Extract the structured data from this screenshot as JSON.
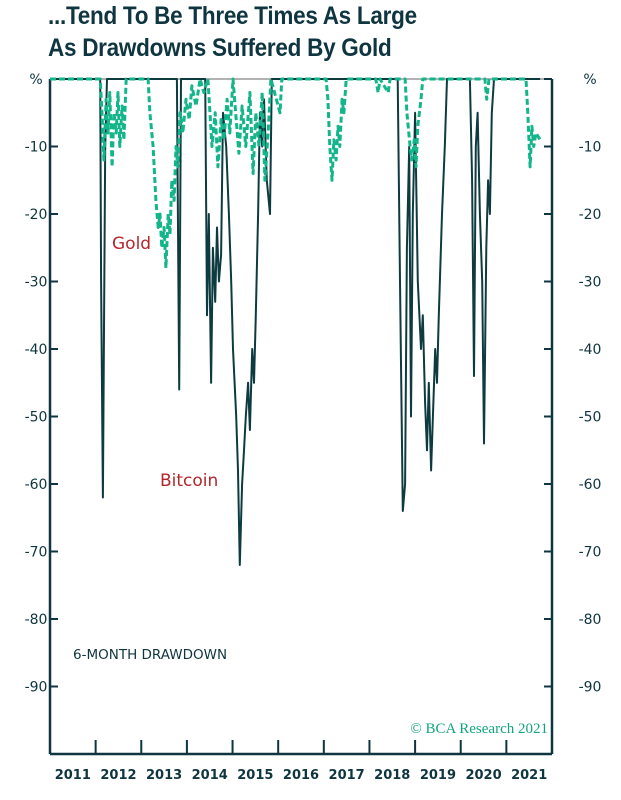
{
  "chart_data": {
    "type": "line",
    "title": "...Tend To Be Three Times As Large",
    "subtitle": "As Drawdowns Suffered By Gold",
    "ylabel": "%",
    "ylim": [
      -100,
      0
    ],
    "yticks": [
      0,
      -10,
      -20,
      -30,
      -40,
      -50,
      -60,
      -70,
      -80,
      -90
    ],
    "ytick_labels": [
      "%",
      "-10",
      "-20",
      "-30",
      "-40",
      "-50",
      "-60",
      "-70",
      "-80",
      "-90"
    ],
    "xlim": [
      2011,
      2022
    ],
    "xtick_labels": [
      "2011",
      "2012",
      "2013",
      "2014",
      "2015",
      "2016",
      "2017",
      "2018",
      "2019",
      "2020",
      "2021"
    ],
    "grid": false,
    "annotations": {
      "panel_label": "6-MONTH DRAWDOWN",
      "source": "© BCA Research 2021"
    },
    "series": [
      {
        "name": "Bitcoin",
        "color": "#0d3b40",
        "style": "solid",
        "x": [
          2011.0,
          2012.1,
          2012.12,
          2012.16,
          2012.21,
          2012.25,
          2013.78,
          2013.83,
          2013.87,
          2014.4,
          2014.44,
          2014.48,
          2014.53,
          2014.57,
          2014.62,
          2014.66,
          2014.7,
          2014.75,
          2014.79,
          2014.86,
          2014.92,
          2014.97,
          2015.01,
          2015.08,
          2015.12,
          2015.16,
          2015.21,
          2015.25,
          2015.29,
          2015.34,
          2015.38,
          2015.43,
          2015.47,
          2015.51,
          2015.56,
          2015.6,
          2015.65,
          2015.69,
          2015.75,
          2015.82,
          2015.86,
          2018.62,
          2018.67,
          2018.73,
          2018.78,
          2018.82,
          2018.87,
          2018.91,
          2018.95,
          2019.0,
          2019.06,
          2019.13,
          2019.17,
          2019.22,
          2019.26,
          2019.3,
          2019.35,
          2019.39,
          2019.44,
          2019.48,
          2019.52,
          2019.59,
          2019.65,
          2019.7,
          2020.2,
          2020.25,
          2020.29,
          2020.33,
          2020.37,
          2020.42,
          2020.47,
          2020.51,
          2020.56,
          2020.6,
          2020.64,
          2020.68,
          2020.73,
          2021.74
        ],
        "y": [
          0,
          0,
          -30,
          -62,
          -10,
          0,
          0,
          -46,
          0,
          0,
          -35,
          -20,
          -45,
          -25,
          -33,
          -22,
          -30,
          -26,
          -5,
          -10,
          -20,
          -30,
          -40,
          -50,
          -58,
          -72,
          -60,
          -55,
          -50,
          -45,
          -52,
          -40,
          -45,
          -35,
          -20,
          -5,
          -10,
          -3,
          -15,
          -20,
          0,
          0,
          -30,
          -64,
          -60,
          -25,
          -10,
          -50,
          -20,
          -5,
          -30,
          -40,
          -35,
          -48,
          -55,
          -45,
          -58,
          -50,
          -40,
          -45,
          -35,
          -20,
          -10,
          0,
          0,
          -15,
          -44,
          -10,
          -5,
          -20,
          -30,
          -54,
          -25,
          -15,
          -20,
          -5,
          0,
          0
        ]
      },
      {
        "name": "Gold",
        "color": "#13b58a",
        "style": "dashed",
        "x": [
          2011.0,
          2012.1,
          2012.14,
          2012.18,
          2012.23,
          2012.27,
          2012.31,
          2012.36,
          2012.4,
          2012.45,
          2012.49,
          2012.53,
          2012.58,
          2012.62,
          2012.67,
          2013.15,
          2013.19,
          2013.26,
          2013.32,
          2013.37,
          2013.41,
          2013.45,
          2013.5,
          2013.54,
          2013.59,
          2013.63,
          2013.67,
          2013.72,
          2013.76,
          2013.8,
          2013.85,
          2013.91,
          2013.98,
          2014.05,
          2014.11,
          2014.2,
          2014.29,
          2014.37,
          2014.46,
          2014.55,
          2014.62,
          2014.68,
          2014.75,
          2014.81,
          2014.88,
          2014.94,
          2015.01,
          2015.08,
          2015.14,
          2015.21,
          2015.29,
          2015.38,
          2015.45,
          2015.51,
          2015.58,
          2015.65,
          2015.71,
          2015.78,
          2015.84,
          2016.04,
          2016.08,
          2017.05,
          2017.09,
          2017.13,
          2017.18,
          2017.22,
          2017.27,
          2017.31,
          2017.35,
          2017.4,
          2017.44,
          2017.49,
          2018.14,
          2018.19,
          2018.23,
          2018.41,
          2018.45,
          2018.78,
          2018.82,
          2018.89,
          2018.93,
          2018.98,
          2019.02,
          2019.06,
          2019.13,
          2019.17,
          2020.53,
          2020.57,
          2020.62,
          2021.43,
          2021.47,
          2021.52,
          2021.56,
          2021.6,
          2021.65,
          2021.74
        ],
        "y": [
          0,
          0,
          -5,
          -12,
          -3,
          -8,
          -2,
          -13,
          -5,
          -8,
          -2,
          -10,
          -4,
          -9,
          0,
          0,
          -5,
          -10,
          -18,
          -22,
          -20,
          -25,
          -22,
          -28,
          -20,
          -23,
          -15,
          -18,
          -10,
          -13,
          -5,
          -8,
          -3,
          -6,
          -1,
          -4,
          0,
          -2,
          0,
          -10,
          -5,
          -13,
          -6,
          -9,
          -3,
          -8,
          0,
          -6,
          -11,
          -4,
          -10,
          -2,
          -14,
          -5,
          -10,
          -2,
          -15,
          -8,
          0,
          -5,
          0,
          0,
          -3,
          -10,
          -15,
          -9,
          -12,
          -7,
          -10,
          -3,
          -5,
          0,
          0,
          -2,
          0,
          -2,
          0,
          0,
          -5,
          -10,
          -12,
          -9,
          -13,
          -7,
          -3,
          0,
          0,
          -3,
          0,
          0,
          -5,
          -13,
          -7,
          -10,
          -8,
          -9
        ]
      }
    ]
  }
}
